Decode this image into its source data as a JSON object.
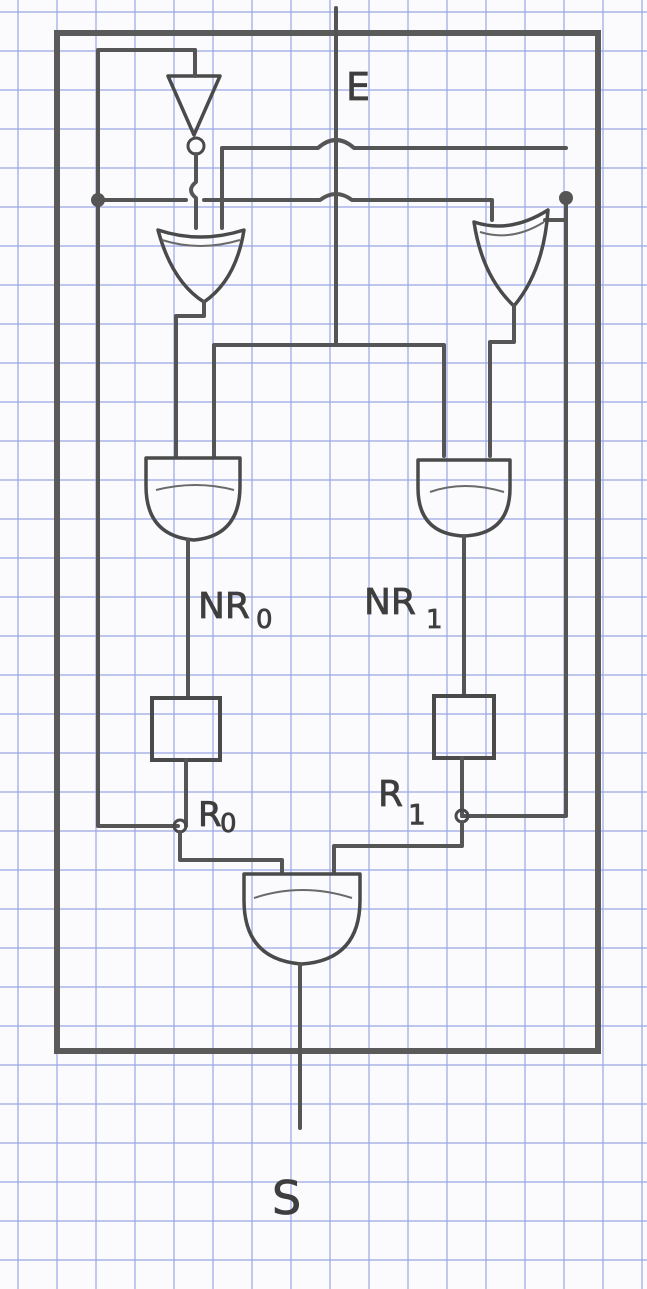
{
  "labels": {
    "input": "E",
    "next_state_0": "NR",
    "next_state_0_sub": "0",
    "next_state_1": "NR",
    "next_state_1_sub": "1",
    "reg_0": "R",
    "reg_0_sub": "0",
    "reg_1": "R",
    "reg_1_sub": "1",
    "output": "S"
  },
  "colors": {
    "paper": "#fbfbfd",
    "grid": "#9aa6e6",
    "pencil": "#555555"
  }
}
